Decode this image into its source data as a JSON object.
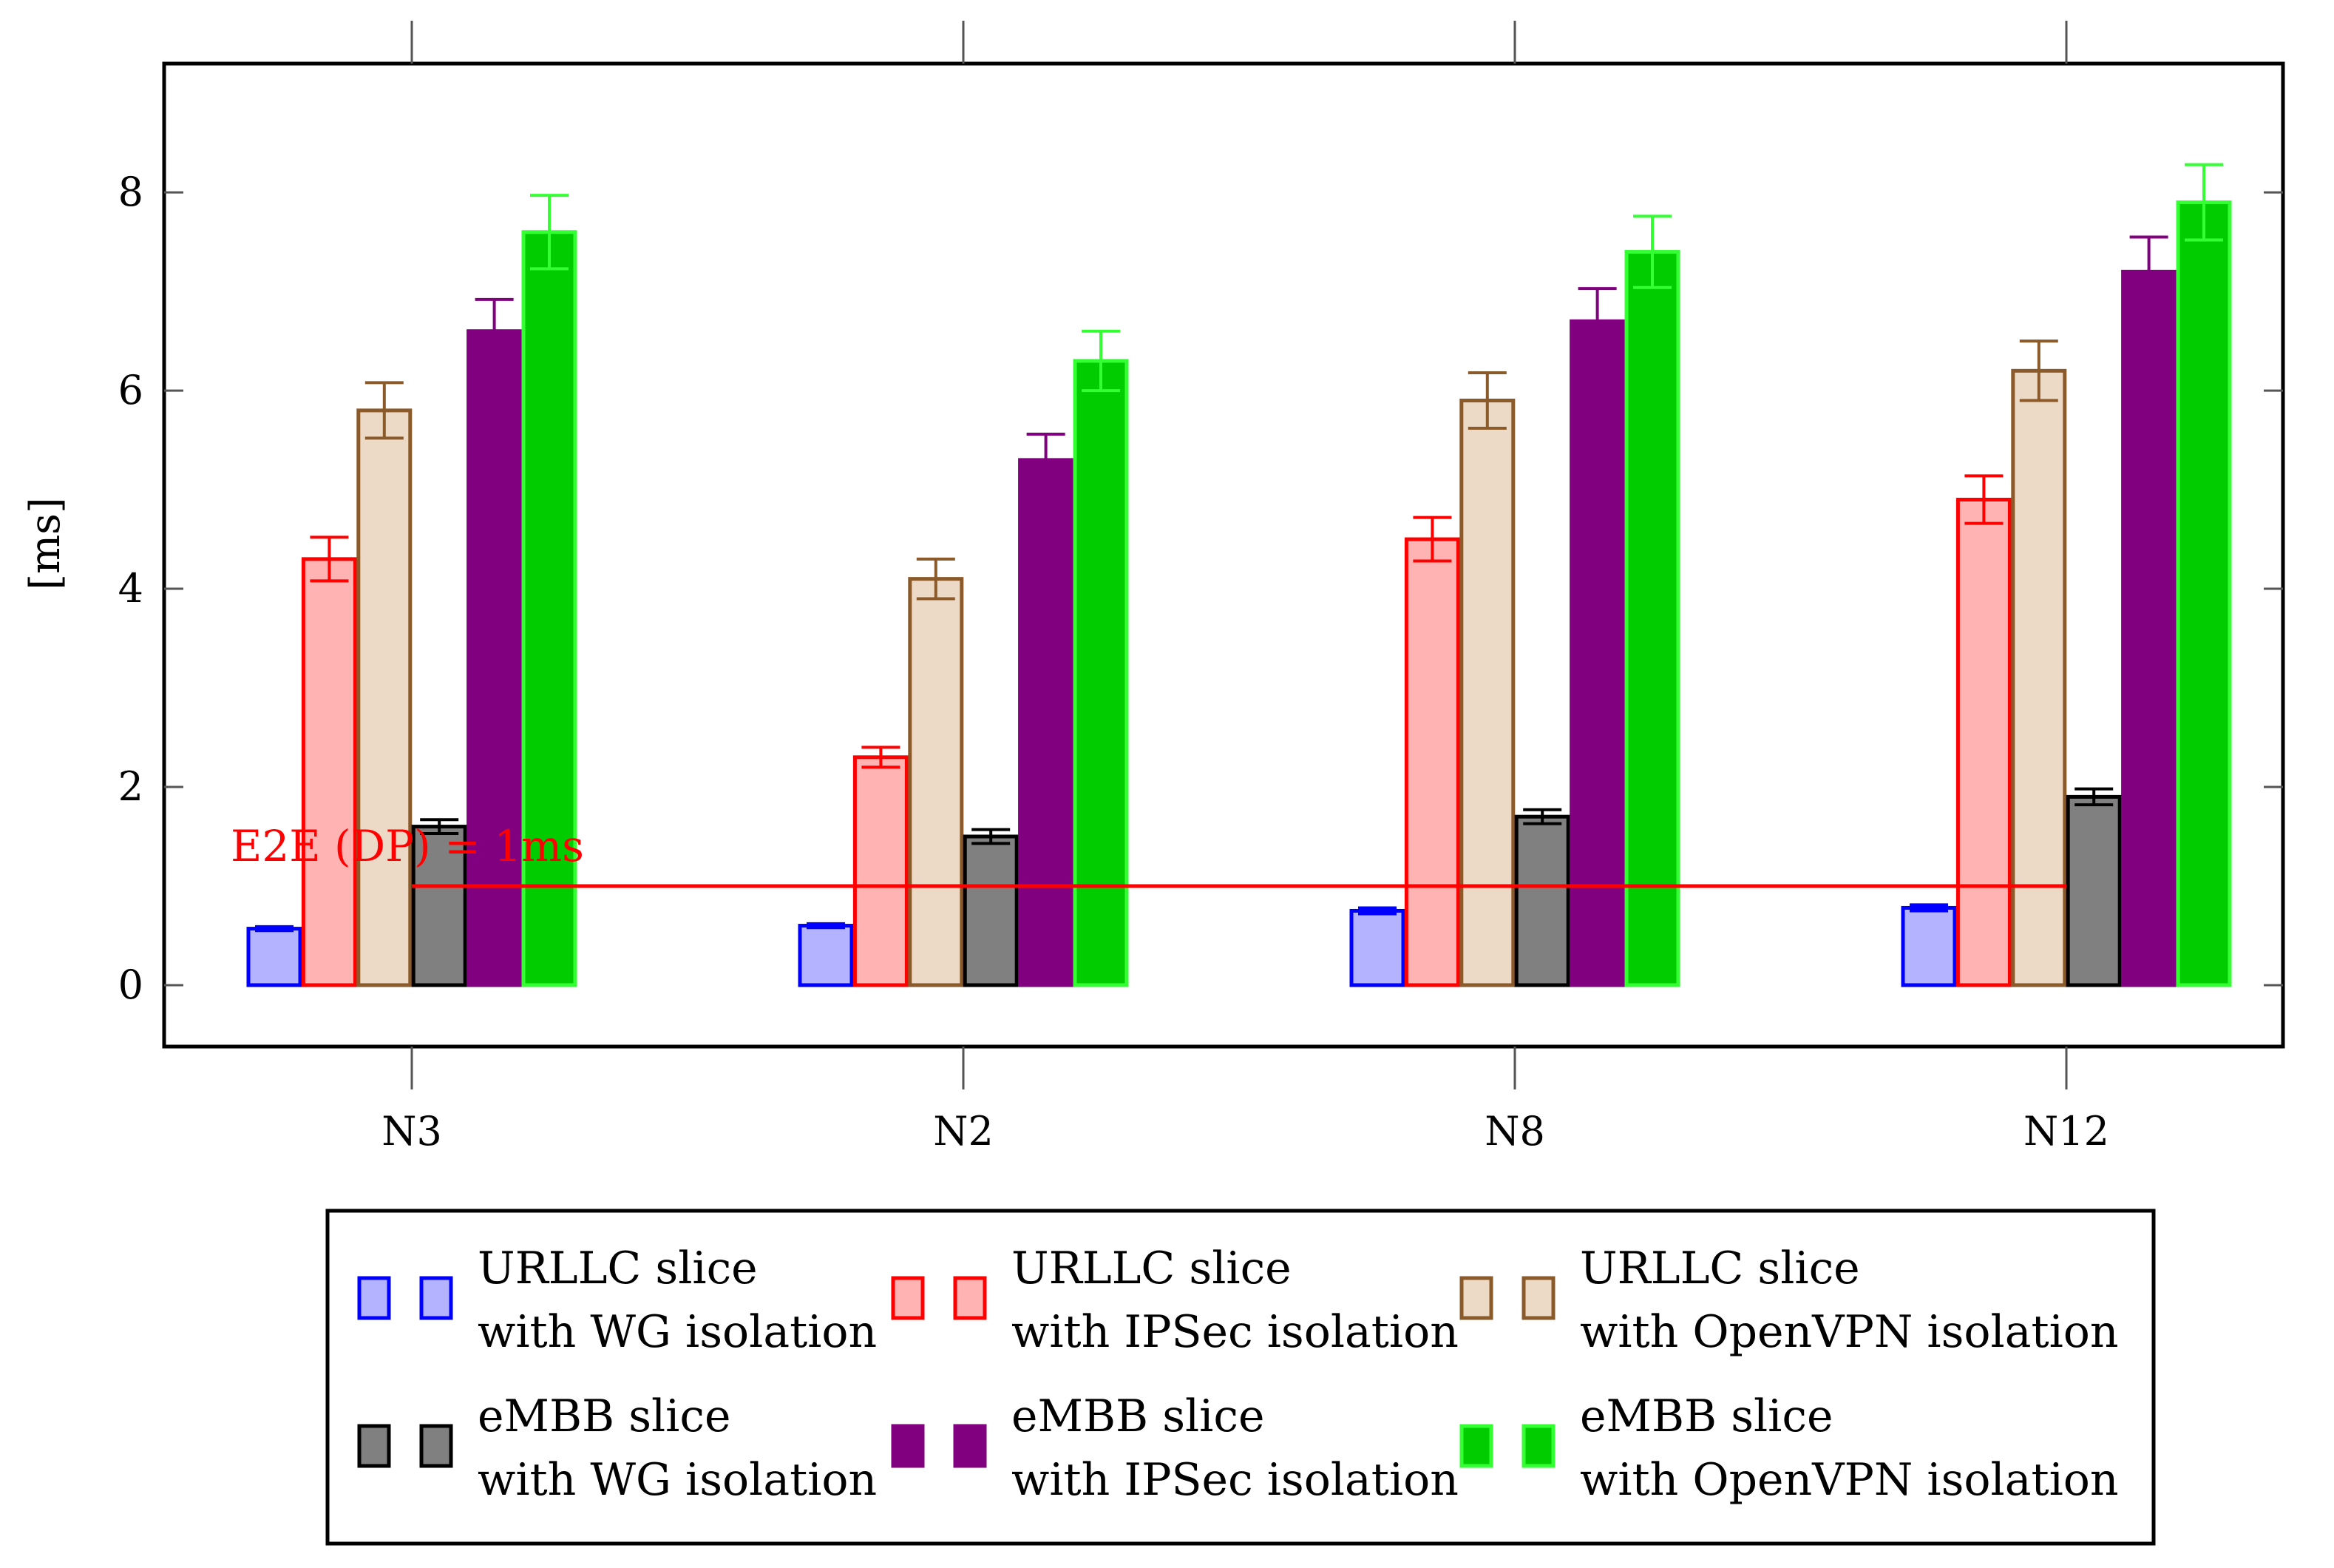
{
  "chart_data": {
    "type": "bar",
    "title": "",
    "xlabel": "",
    "ylabel": "[ms]",
    "ylim": [
      -0.62,
      9.3
    ],
    "yticks": [
      0,
      2,
      4,
      6,
      8
    ],
    "grid": false,
    "legend_placement": "bottom",
    "categories": [
      "N3",
      "N2",
      "N8",
      "N12"
    ],
    "series": [
      {
        "name": "URLLC slice with WG isolation",
        "legend_lines": [
          "URLLC slice",
          "with WG isolation"
        ],
        "fill": "#b3b3ff",
        "stroke": "#0000ff",
        "values": [
          0.57,
          0.6,
          0.75,
          0.78
        ],
        "errors": [
          0.02,
          0.02,
          0.03,
          0.03
        ]
      },
      {
        "name": "URLLC slice with IPSec isolation",
        "legend_lines": [
          "URLLC slice",
          "with IPSec isolation"
        ],
        "fill": "#ffb3b3",
        "stroke": "#ff0000",
        "values": [
          4.3,
          2.3,
          4.5,
          4.9
        ],
        "errors": [
          0.22,
          0.1,
          0.22,
          0.24
        ]
      },
      {
        "name": "URLLC slice with OpenVPN isolation",
        "legend_lines": [
          "URLLC slice",
          "with OpenVPN isolation"
        ],
        "fill": "#ecd9c6",
        "stroke": "#8b5a2b",
        "values": [
          5.8,
          4.1,
          5.9,
          6.2
        ],
        "errors": [
          0.28,
          0.2,
          0.28,
          0.3
        ]
      },
      {
        "name": "eMBB slice with WG isolation",
        "legend_lines": [
          "eMBB slice",
          "with WG isolation"
        ],
        "fill": "#808080",
        "stroke": "#000000",
        "values": [
          1.6,
          1.5,
          1.7,
          1.9
        ],
        "errors": [
          0.07,
          0.07,
          0.07,
          0.08
        ]
      },
      {
        "name": "eMBB slice with IPSec isolation",
        "legend_lines": [
          "eMBB slice",
          "with IPSec isolation"
        ],
        "fill": "#800080",
        "stroke": "#800080",
        "values": [
          6.6,
          5.3,
          6.7,
          7.2
        ],
        "errors": [
          0.32,
          0.26,
          0.33,
          0.35
        ]
      },
      {
        "name": "eMBB slice with OpenVPN isolation",
        "legend_lines": [
          "eMBB slice",
          "with OpenVPN isolation"
        ],
        "fill": "#00cc00",
        "stroke": "#33ff33",
        "values": [
          7.6,
          6.3,
          7.4,
          7.9
        ],
        "errors": [
          0.37,
          0.3,
          0.36,
          0.38
        ]
      }
    ],
    "reference_line": {
      "label": "E2E (DP) = 1ms",
      "value": 1,
      "color": "#ff0000",
      "from_category": "N3",
      "to_category": "N12"
    }
  }
}
